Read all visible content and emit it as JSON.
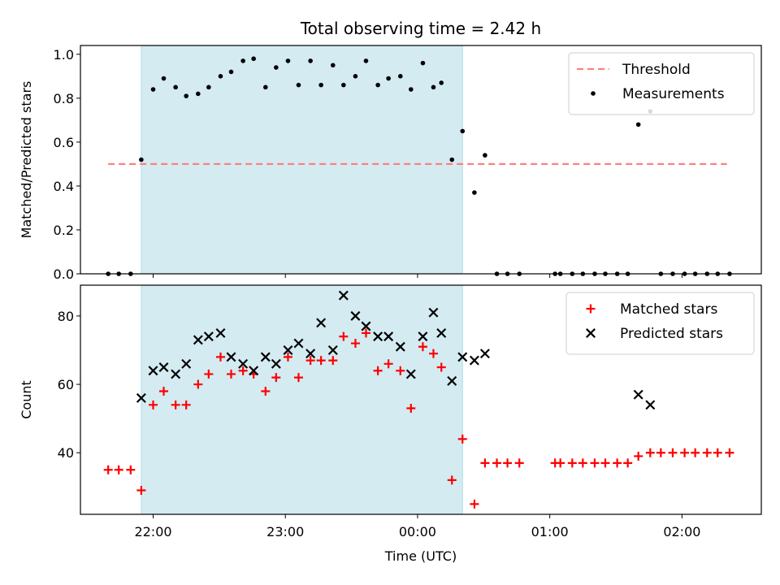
{
  "chart_data": {
    "type": "scatter",
    "title": "Total observing time = 2.42 h",
    "xlabel": "Time (UTC)",
    "x_unit": "hours since 00:00 UTC (negative = previous day)",
    "xlim": [
      -2.55,
      2.6
    ],
    "xticks": [
      {
        "value": -2.0,
        "label": "22:00"
      },
      {
        "value": -1.0,
        "label": "23:00"
      },
      {
        "value": 0.0,
        "label": "00:00"
      },
      {
        "value": 1.0,
        "label": "01:00"
      },
      {
        "value": 2.0,
        "label": "02:00"
      }
    ],
    "shaded_interval": {
      "x": [
        -2.09,
        0.34
      ],
      "color": "#add8e6"
    },
    "panels": [
      {
        "ylabel": "Matched/Predicted stars",
        "ylim": [
          0.0,
          1.04
        ],
        "yticks": [
          {
            "value": 0.0,
            "label": "0.0"
          },
          {
            "value": 0.2,
            "label": "0.2"
          },
          {
            "value": 0.4,
            "label": "0.4"
          },
          {
            "value": 0.6,
            "label": "0.6"
          },
          {
            "value": 0.8,
            "label": "0.8"
          },
          {
            "value": 1.0,
            "label": "1.0"
          }
        ],
        "legend_position": "upper-right",
        "series": [
          {
            "name": "Threshold",
            "kind": "dashed-line",
            "color": "#ff7f7f",
            "points": [
              [
                -2.34,
                0.5
              ],
              [
                2.34,
                0.5
              ]
            ]
          },
          {
            "name": "Measurements",
            "kind": "dot",
            "color": "#000000",
            "points": [
              [
                -2.34,
                0.0
              ],
              [
                -2.26,
                0.0
              ],
              [
                -2.17,
                0.0
              ],
              [
                -2.09,
                0.52
              ],
              [
                -2.0,
                0.84
              ],
              [
                -1.92,
                0.89
              ],
              [
                -1.83,
                0.85
              ],
              [
                -1.75,
                0.81
              ],
              [
                -1.66,
                0.82
              ],
              [
                -1.58,
                0.85
              ],
              [
                -1.49,
                0.9
              ],
              [
                -1.41,
                0.92
              ],
              [
                -1.32,
                0.97
              ],
              [
                -1.24,
                0.98
              ],
              [
                -1.15,
                0.85
              ],
              [
                -1.07,
                0.94
              ],
              [
                -0.98,
                0.97
              ],
              [
                -0.9,
                0.86
              ],
              [
                -0.81,
                0.97
              ],
              [
                -0.73,
                0.86
              ],
              [
                -0.64,
                0.95
              ],
              [
                -0.56,
                0.86
              ],
              [
                -0.47,
                0.9
              ],
              [
                -0.39,
                0.97
              ],
              [
                -0.3,
                0.86
              ],
              [
                -0.22,
                0.89
              ],
              [
                -0.13,
                0.9
              ],
              [
                -0.05,
                0.84
              ],
              [
                0.04,
                0.96
              ],
              [
                0.12,
                0.85
              ],
              [
                0.18,
                0.87
              ],
              [
                0.26,
                0.52
              ],
              [
                0.34,
                0.65
              ],
              [
                0.43,
                0.37
              ],
              [
                0.51,
                0.54
              ],
              [
                0.6,
                0.0
              ],
              [
                0.68,
                0.0
              ],
              [
                0.77,
                0.0
              ],
              [
                1.04,
                0.0
              ],
              [
                1.08,
                0.0
              ],
              [
                1.17,
                0.0
              ],
              [
                1.25,
                0.0
              ],
              [
                1.34,
                0.0
              ],
              [
                1.42,
                0.0
              ],
              [
                1.51,
                0.0
              ],
              [
                1.59,
                0.0
              ],
              [
                1.67,
                0.68
              ],
              [
                1.76,
                0.74
              ],
              [
                1.84,
                0.0
              ],
              [
                1.93,
                0.0
              ],
              [
                2.02,
                0.0
              ],
              [
                2.1,
                0.0
              ],
              [
                2.19,
                0.0
              ],
              [
                2.27,
                0.0
              ],
              [
                2.36,
                0.0
              ]
            ]
          }
        ]
      },
      {
        "ylabel": "Count",
        "ylim": [
          22,
          89
        ],
        "yticks": [
          {
            "value": 40,
            "label": "40"
          },
          {
            "value": 60,
            "label": "60"
          },
          {
            "value": 80,
            "label": "80"
          }
        ],
        "legend_position": "upper-right",
        "series": [
          {
            "name": "Matched stars",
            "kind": "plus",
            "color": "#ff0000",
            "points": [
              [
                -2.34,
                35
              ],
              [
                -2.26,
                35
              ],
              [
                -2.17,
                35
              ],
              [
                -2.09,
                29
              ],
              [
                -2.0,
                54
              ],
              [
                -1.92,
                58
              ],
              [
                -1.83,
                54
              ],
              [
                -1.75,
                54
              ],
              [
                -1.66,
                60
              ],
              [
                -1.58,
                63
              ],
              [
                -1.49,
                68
              ],
              [
                -1.41,
                63
              ],
              [
                -1.32,
                64
              ],
              [
                -1.24,
                63
              ],
              [
                -1.15,
                58
              ],
              [
                -1.07,
                62
              ],
              [
                -0.98,
                68
              ],
              [
                -0.9,
                62
              ],
              [
                -0.81,
                67
              ],
              [
                -0.73,
                67
              ],
              [
                -0.64,
                67
              ],
              [
                -0.56,
                74
              ],
              [
                -0.47,
                72
              ],
              [
                -0.39,
                75
              ],
              [
                -0.3,
                64
              ],
              [
                -0.22,
                66
              ],
              [
                -0.13,
                64
              ],
              [
                -0.05,
                53
              ],
              [
                0.04,
                71
              ],
              [
                0.12,
                69
              ],
              [
                0.18,
                65
              ],
              [
                0.26,
                32
              ],
              [
                0.34,
                44
              ],
              [
                0.43,
                25
              ],
              [
                0.51,
                37
              ],
              [
                0.6,
                37
              ],
              [
                0.68,
                37
              ],
              [
                0.77,
                37
              ],
              [
                1.04,
                37
              ],
              [
                1.08,
                37
              ],
              [
                1.17,
                37
              ],
              [
                1.25,
                37
              ],
              [
                1.34,
                37
              ],
              [
                1.42,
                37
              ],
              [
                1.51,
                37
              ],
              [
                1.59,
                37
              ],
              [
                1.67,
                39
              ],
              [
                1.76,
                40
              ],
              [
                1.84,
                40
              ],
              [
                1.93,
                40
              ],
              [
                2.02,
                40
              ],
              [
                2.1,
                40
              ],
              [
                2.19,
                40
              ],
              [
                2.27,
                40
              ],
              [
                2.36,
                40
              ]
            ]
          },
          {
            "name": "Predicted stars",
            "kind": "x",
            "color": "#000000",
            "points": [
              [
                -2.09,
                56
              ],
              [
                -2.0,
                64
              ],
              [
                -1.92,
                65
              ],
              [
                -1.83,
                63
              ],
              [
                -1.75,
                66
              ],
              [
                -1.66,
                73
              ],
              [
                -1.58,
                74
              ],
              [
                -1.49,
                75
              ],
              [
                -1.41,
                68
              ],
              [
                -1.32,
                66
              ],
              [
                -1.24,
                64
              ],
              [
                -1.15,
                68
              ],
              [
                -1.07,
                66
              ],
              [
                -0.98,
                70
              ],
              [
                -0.9,
                72
              ],
              [
                -0.81,
                69
              ],
              [
                -0.73,
                78
              ],
              [
                -0.64,
                70
              ],
              [
                -0.56,
                86
              ],
              [
                -0.47,
                80
              ],
              [
                -0.39,
                77
              ],
              [
                -0.3,
                74
              ],
              [
                -0.22,
                74
              ],
              [
                -0.13,
                71
              ],
              [
                -0.05,
                63
              ],
              [
                0.04,
                74
              ],
              [
                0.12,
                81
              ],
              [
                0.18,
                75
              ],
              [
                0.26,
                61
              ],
              [
                0.34,
                68
              ],
              [
                0.43,
                67
              ],
              [
                0.51,
                69
              ],
              [
                1.67,
                57
              ],
              [
                1.76,
                54
              ]
            ]
          }
        ]
      }
    ]
  }
}
